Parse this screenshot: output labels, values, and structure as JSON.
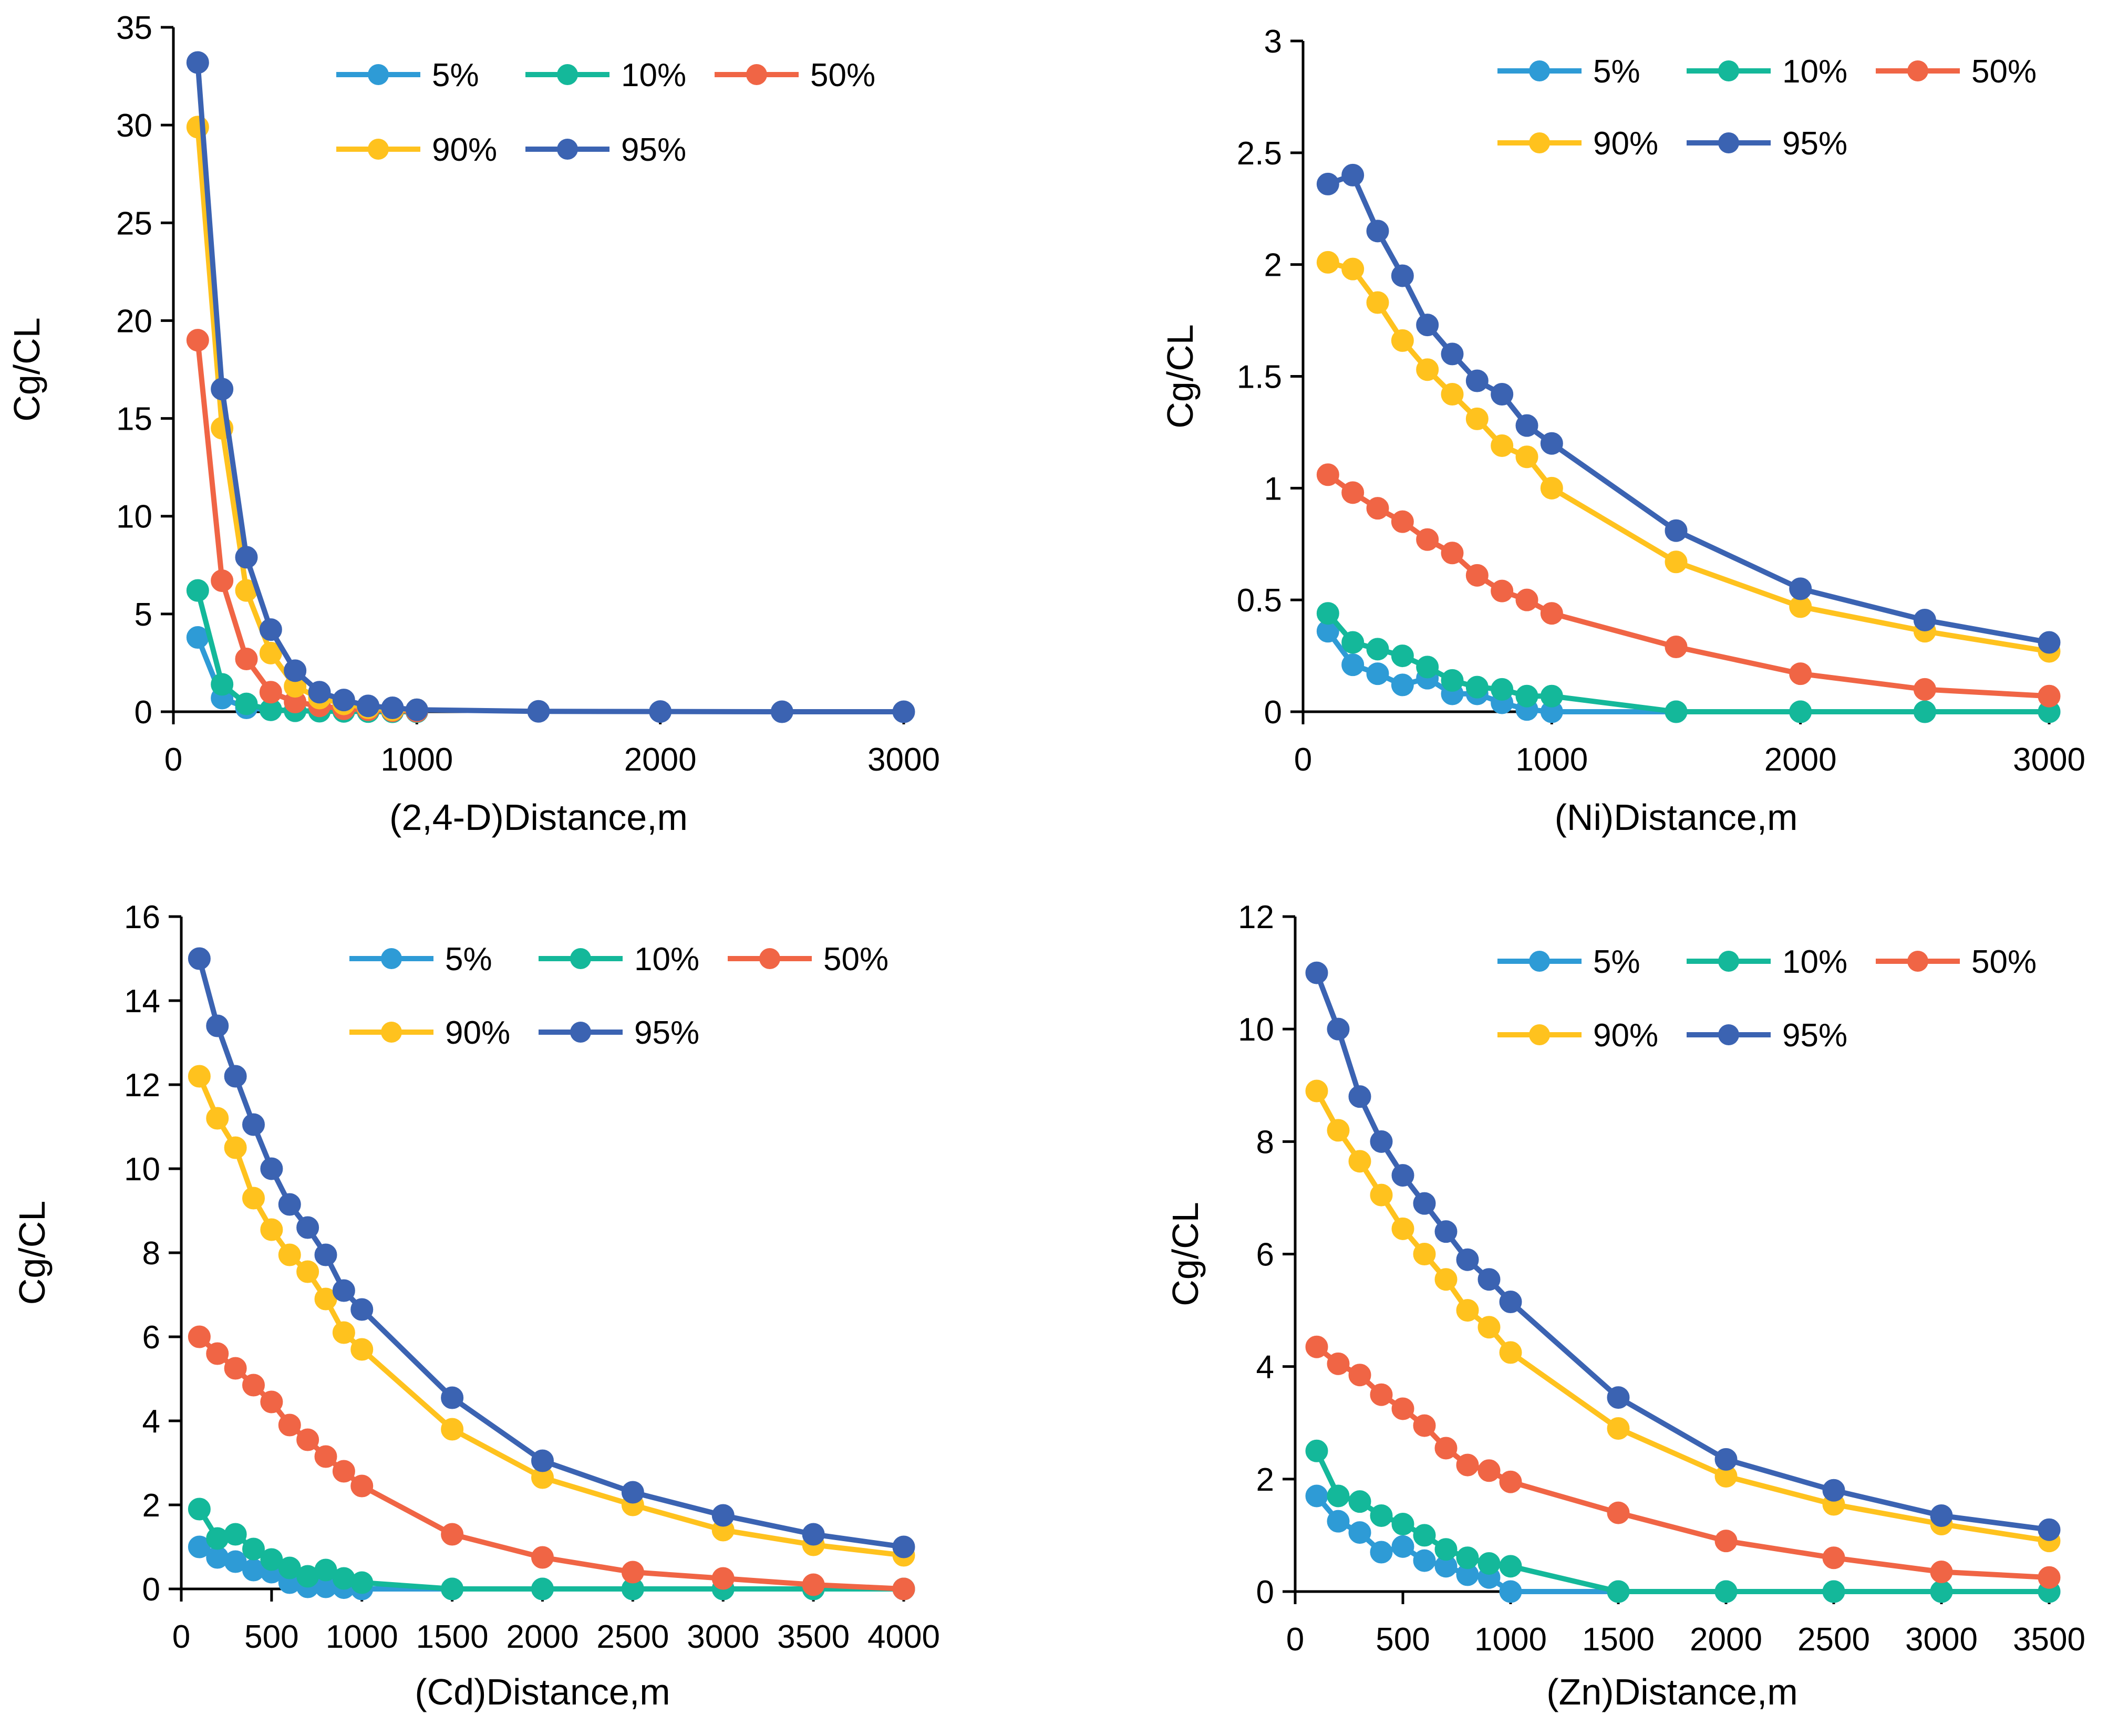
{
  "colors": {
    "s5": "#2E9BD6",
    "s10": "#14B89A",
    "s50": "#F06545",
    "s90": "#FFC21E",
    "s95": "#3B63B2",
    "axis": "#000000"
  },
  "chart_data": [
    {
      "type": "line",
      "title": "",
      "xlabel": "(2,4-D)Distance,m",
      "ylabel": "Cg/CL",
      "xlim": [
        0,
        3000
      ],
      "ylim": [
        0,
        35
      ],
      "xticks": [
        0,
        1000,
        2000,
        3000
      ],
      "xtick_labels": [
        "0",
        "1000",
        "2000",
        "3000"
      ],
      "yticks": [
        0,
        5,
        10,
        15,
        20,
        25,
        30,
        35
      ],
      "ytick_labels": [
        "0",
        "5",
        "10",
        "15",
        "20",
        "25",
        "30",
        "35"
      ],
      "legend": "top-right",
      "series": [
        {
          "name": "5%",
          "color_key": "s5",
          "x": [
            100,
            200,
            300,
            400,
            500,
            600,
            700,
            800,
            900,
            1000
          ],
          "y": [
            3.8,
            0.7,
            0.2,
            0.1,
            0.05,
            0.03,
            0.02,
            0.01,
            0.0,
            0.0
          ]
        },
        {
          "name": "10%",
          "color_key": "s10",
          "x": [
            100,
            200,
            300,
            400,
            500,
            600,
            700,
            800,
            900,
            1000
          ],
          "y": [
            6.2,
            1.4,
            0.4,
            0.1,
            0.05,
            0.03,
            0.02,
            0.01,
            0.0,
            0.0
          ]
        },
        {
          "name": "50%",
          "color_key": "s50",
          "x": [
            100,
            200,
            300,
            400,
            500,
            600,
            700,
            800,
            900,
            1000
          ],
          "y": [
            19.0,
            6.7,
            2.7,
            1.0,
            0.5,
            0.3,
            0.15,
            0.1,
            0.05,
            0.03
          ]
        },
        {
          "name": "90%",
          "color_key": "s90",
          "x": [
            100,
            200,
            300,
            400,
            500,
            600,
            700,
            800,
            900,
            1000
          ],
          "y": [
            29.9,
            14.5,
            6.2,
            3.0,
            1.3,
            0.7,
            0.4,
            0.2,
            0.1,
            0.1
          ]
        },
        {
          "name": "95%",
          "color_key": "s95",
          "x": [
            100,
            200,
            300,
            400,
            500,
            600,
            700,
            800,
            900,
            1000,
            1500,
            2000,
            2500,
            3000
          ],
          "y": [
            33.2,
            16.5,
            7.9,
            4.2,
            2.1,
            1.0,
            0.6,
            0.3,
            0.2,
            0.1,
            0.02,
            0.01,
            0.0,
            0.0
          ]
        }
      ]
    },
    {
      "type": "line",
      "title": "",
      "xlabel": "(Ni)Distance,m",
      "ylabel": "Cg/CL",
      "xlim": [
        0,
        3000
      ],
      "ylim": [
        0,
        3
      ],
      "xticks": [
        0,
        1000,
        2000,
        3000
      ],
      "xtick_labels": [
        "0",
        "1000",
        "2000",
        "3000"
      ],
      "yticks": [
        0,
        0.5,
        1,
        1.5,
        2,
        2.5,
        3
      ],
      "ytick_labels": [
        "0",
        "0.5",
        "1",
        "1.5",
        "2",
        "2.5",
        "3"
      ],
      "legend": "top-right",
      "series": [
        {
          "name": "5%",
          "color_key": "s5",
          "x": [
            100,
            200,
            300,
            400,
            500,
            600,
            700,
            800,
            900,
            1000,
            1500,
            2000,
            2500,
            3000
          ],
          "y": [
            0.36,
            0.21,
            0.17,
            0.12,
            0.15,
            0.08,
            0.08,
            0.04,
            0.01,
            0.0,
            0.0,
            0.0,
            0.0,
            0.0
          ]
        },
        {
          "name": "10%",
          "color_key": "s10",
          "x": [
            100,
            200,
            300,
            400,
            500,
            600,
            700,
            800,
            900,
            1000,
            1500,
            2000,
            2500,
            3000
          ],
          "y": [
            0.44,
            0.31,
            0.28,
            0.25,
            0.2,
            0.14,
            0.11,
            0.1,
            0.07,
            0.07,
            0.0,
            0.0,
            0.0,
            0.0
          ]
        },
        {
          "name": "50%",
          "color_key": "s50",
          "x": [
            100,
            200,
            300,
            400,
            500,
            600,
            700,
            800,
            900,
            1000,
            1500,
            2000,
            2500,
            3000
          ],
          "y": [
            1.06,
            0.98,
            0.91,
            0.85,
            0.77,
            0.71,
            0.61,
            0.54,
            0.5,
            0.44,
            0.29,
            0.17,
            0.1,
            0.07
          ]
        },
        {
          "name": "90%",
          "color_key": "s90",
          "x": [
            100,
            200,
            300,
            400,
            500,
            600,
            700,
            800,
            900,
            1000,
            1500,
            2000,
            2500,
            3000
          ],
          "y": [
            2.01,
            1.98,
            1.83,
            1.66,
            1.53,
            1.42,
            1.31,
            1.19,
            1.14,
            1.0,
            0.67,
            0.47,
            0.36,
            0.27
          ]
        },
        {
          "name": "95%",
          "color_key": "s95",
          "x": [
            100,
            200,
            300,
            400,
            500,
            600,
            700,
            800,
            900,
            1000,
            1500,
            2000,
            2500,
            3000
          ],
          "y": [
            2.36,
            2.4,
            2.15,
            1.95,
            1.73,
            1.6,
            1.48,
            1.42,
            1.28,
            1.2,
            0.81,
            0.55,
            0.41,
            0.31
          ]
        }
      ]
    },
    {
      "type": "line",
      "title": "",
      "xlabel": "(Cd)Distance,m",
      "ylabel": "Cg/CL",
      "xlim": [
        0,
        4000
      ],
      "ylim": [
        0,
        16
      ],
      "xticks": [
        0,
        500,
        1000,
        1500,
        2000,
        2500,
        3000,
        3500,
        4000
      ],
      "xtick_labels": [
        "0",
        "500",
        "1000",
        "1500",
        "2000",
        "2500",
        "3000",
        "3500",
        "4000"
      ],
      "yticks": [
        0,
        2,
        4,
        6,
        8,
        10,
        12,
        14,
        16
      ],
      "ytick_labels": [
        "0",
        "2",
        "4",
        "6",
        "8",
        "10",
        "12",
        "14",
        "16"
      ],
      "legend": "top-right",
      "series": [
        {
          "name": "5%",
          "color_key": "s5",
          "x": [
            100,
            200,
            300,
            400,
            500,
            600,
            700,
            800,
            900,
            1000,
            1500,
            2000,
            2500,
            3000,
            3500,
            4000
          ],
          "y": [
            1.0,
            0.75,
            0.65,
            0.45,
            0.4,
            0.15,
            0.05,
            0.05,
            0.03,
            0.0,
            0.0,
            0.0,
            0.0,
            0.0,
            0.0,
            0.0
          ]
        },
        {
          "name": "10%",
          "color_key": "s10",
          "x": [
            100,
            200,
            300,
            400,
            500,
            600,
            700,
            800,
            900,
            1000,
            1500,
            2000,
            2500,
            3000,
            3500,
            4000
          ],
          "y": [
            1.9,
            1.2,
            1.3,
            0.95,
            0.7,
            0.5,
            0.3,
            0.45,
            0.25,
            0.15,
            0.0,
            0.0,
            0.0,
            0.0,
            0.0,
            0.0
          ]
        },
        {
          "name": "50%",
          "color_key": "s50",
          "x": [
            100,
            200,
            300,
            400,
            500,
            600,
            700,
            800,
            900,
            1000,
            1500,
            2000,
            2500,
            3000,
            3500,
            4000
          ],
          "y": [
            6.0,
            5.6,
            5.25,
            4.85,
            4.45,
            3.9,
            3.55,
            3.15,
            2.8,
            2.45,
            1.3,
            0.75,
            0.4,
            0.25,
            0.1,
            0.0
          ]
        },
        {
          "name": "90%",
          "color_key": "s90",
          "x": [
            100,
            200,
            300,
            400,
            500,
            600,
            700,
            800,
            900,
            1000,
            1500,
            2000,
            2500,
            3000,
            3500,
            4000
          ],
          "y": [
            12.2,
            11.2,
            10.5,
            9.3,
            8.55,
            7.95,
            7.55,
            6.9,
            6.1,
            5.7,
            3.8,
            2.65,
            2.0,
            1.4,
            1.05,
            0.8
          ]
        },
        {
          "name": "95%",
          "color_key": "s95",
          "x": [
            100,
            200,
            300,
            400,
            500,
            600,
            700,
            800,
            900,
            1000,
            1500,
            2000,
            2500,
            3000,
            3500,
            4000
          ],
          "y": [
            15.0,
            13.4,
            12.2,
            11.05,
            10.0,
            9.15,
            8.6,
            7.95,
            7.1,
            6.65,
            4.55,
            3.05,
            2.3,
            1.75,
            1.3,
            1.0
          ]
        }
      ]
    },
    {
      "type": "line",
      "title": "",
      "xlabel": "(Zn)Distance,m",
      "ylabel": "Cg/CL",
      "xlim": [
        0,
        3500
      ],
      "ylim": [
        0,
        12
      ],
      "xticks": [
        0,
        500,
        1000,
        1500,
        2000,
        2500,
        3000,
        3500
      ],
      "xtick_labels": [
        "0",
        "500",
        "1000",
        "1500",
        "2000",
        "2500",
        "3000",
        "3500"
      ],
      "yticks": [
        0,
        2,
        4,
        6,
        8,
        10,
        12
      ],
      "ytick_labels": [
        "0",
        "2",
        "4",
        "6",
        "8",
        "10",
        "12"
      ],
      "legend": "top-right",
      "series": [
        {
          "name": "5%",
          "color_key": "s5",
          "x": [
            100,
            200,
            300,
            400,
            500,
            600,
            700,
            800,
            900,
            1000,
            1500,
            2000,
            2500,
            3000,
            3500
          ],
          "y": [
            1.7,
            1.25,
            1.05,
            0.7,
            0.8,
            0.55,
            0.45,
            0.3,
            0.25,
            0.0,
            0.0,
            0.0,
            0.0,
            0.0,
            0.0
          ]
        },
        {
          "name": "10%",
          "color_key": "s10",
          "x": [
            100,
            200,
            300,
            400,
            500,
            600,
            700,
            800,
            900,
            1000,
            1500,
            2000,
            2500,
            3000,
            3500
          ],
          "y": [
            2.5,
            1.7,
            1.6,
            1.35,
            1.2,
            1.0,
            0.75,
            0.6,
            0.5,
            0.45,
            0.0,
            0.0,
            0.0,
            0.0,
            0.0
          ]
        },
        {
          "name": "50%",
          "color_key": "s50",
          "x": [
            100,
            200,
            300,
            400,
            500,
            600,
            700,
            800,
            900,
            1000,
            1500,
            2000,
            2500,
            3000,
            3500
          ],
          "y": [
            4.35,
            4.05,
            3.85,
            3.5,
            3.25,
            2.95,
            2.55,
            2.25,
            2.15,
            1.95,
            1.4,
            0.9,
            0.6,
            0.35,
            0.25
          ]
        },
        {
          "name": "90%",
          "color_key": "s90",
          "x": [
            100,
            200,
            300,
            400,
            500,
            600,
            700,
            800,
            900,
            1000,
            1500,
            2000,
            2500,
            3000,
            3500
          ],
          "y": [
            8.9,
            8.2,
            7.65,
            7.05,
            6.45,
            6.0,
            5.55,
            5.0,
            4.7,
            4.25,
            2.9,
            2.05,
            1.55,
            1.2,
            0.9
          ]
        },
        {
          "name": "95%",
          "color_key": "s95",
          "x": [
            100,
            200,
            300,
            400,
            500,
            600,
            700,
            800,
            900,
            1000,
            1500,
            2000,
            2500,
            3000,
            3500
          ],
          "y": [
            11.0,
            10.0,
            8.8,
            8.0,
            7.4,
            6.9,
            6.4,
            5.9,
            5.55,
            5.15,
            3.45,
            2.35,
            1.8,
            1.35,
            1.1
          ]
        }
      ]
    }
  ]
}
